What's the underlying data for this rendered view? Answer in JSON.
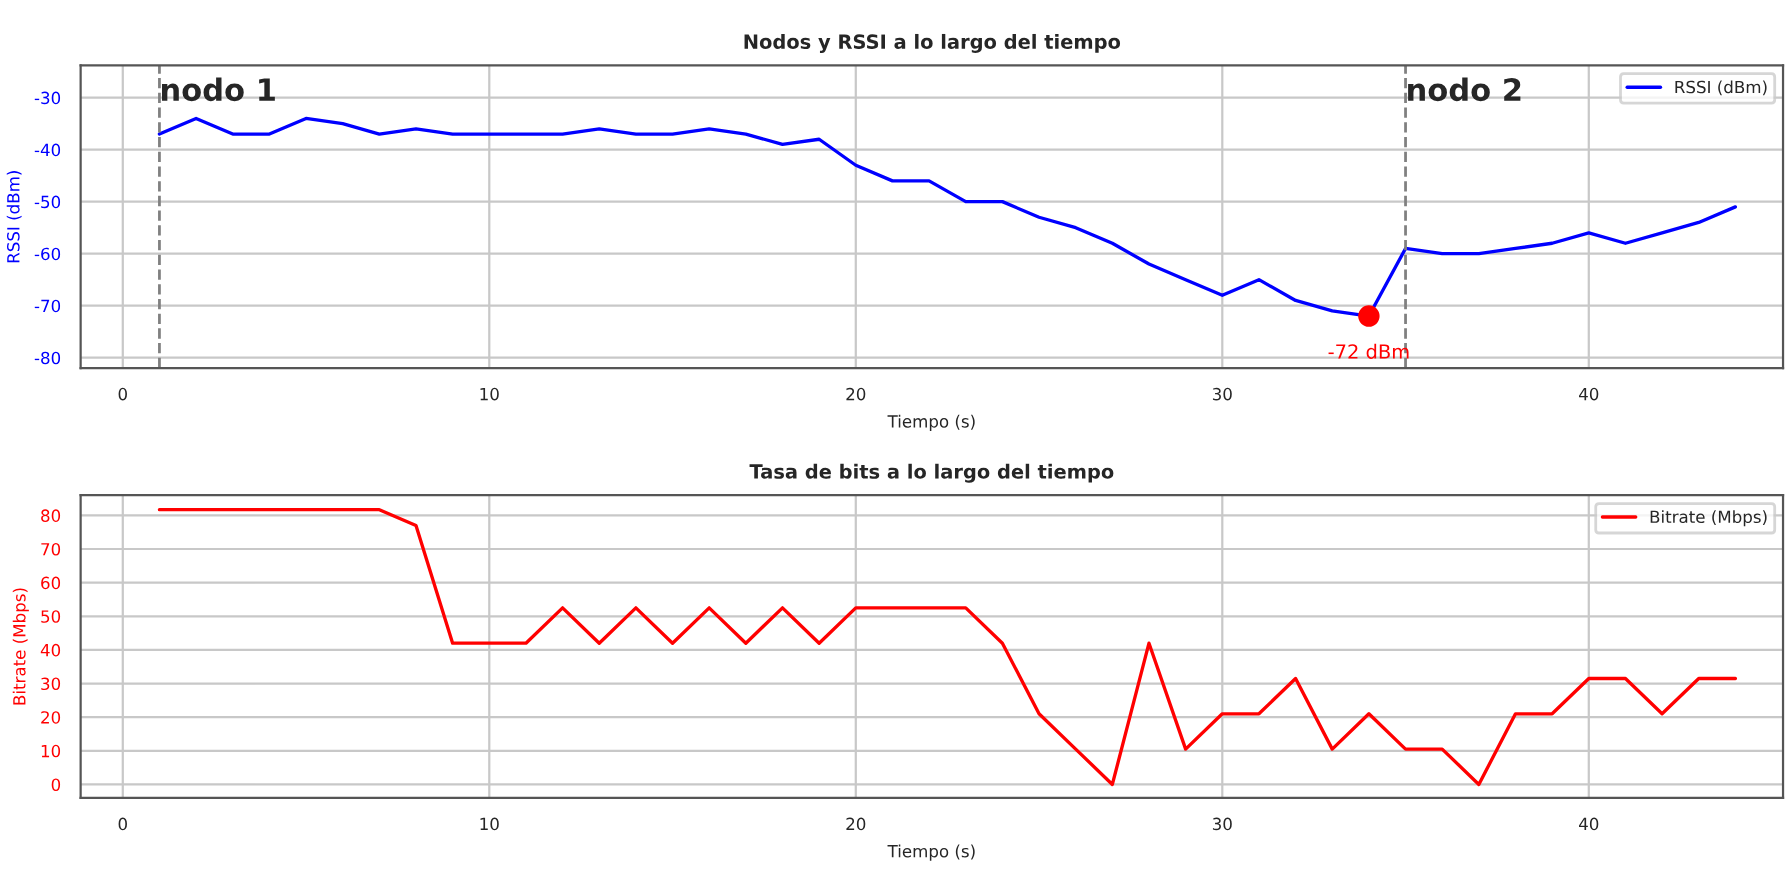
{
  "chart_data": [
    {
      "type": "line",
      "title": "Nodos y RSSI a lo largo del tiempo",
      "xlabel": "Tiempo (s)",
      "ylabel": "RSSI (dBm)",
      "x": [
        1,
        2,
        3,
        4,
        5,
        6,
        7,
        8,
        9,
        10,
        11,
        12,
        13,
        14,
        15,
        16,
        17,
        18,
        19,
        20,
        21,
        22,
        23,
        24,
        25,
        26,
        27,
        28,
        29,
        30,
        31,
        32,
        33,
        34,
        35,
        36,
        37,
        38,
        39,
        40,
        41,
        42,
        43,
        44
      ],
      "series": [
        {
          "name": "RSSI (dBm)",
          "color": "#0000ff",
          "values": [
            -37,
            -34,
            -37,
            -37,
            -34,
            -35,
            -37,
            -36,
            -37,
            -37,
            -37,
            -37,
            -36,
            -37,
            -37,
            -36,
            -37,
            -39,
            -38,
            -43,
            -46,
            -46,
            -50,
            -50,
            -53,
            -55,
            -58,
            -62,
            -65,
            -68,
            -65,
            -69,
            -71,
            -72,
            -59,
            -60,
            -60,
            -59,
            -58,
            -56,
            -58,
            -56,
            -54,
            -51
          ]
        },
        {
          "type": "scatter",
          "color": "#ff0000",
          "x": [
            34
          ],
          "values": [
            -72
          ],
          "marker": "circle"
        }
      ],
      "annotations": [
        {
          "text": "-72 dBm",
          "x": 34,
          "y": -72
        }
      ],
      "ref_lines": [
        {
          "axis": "x",
          "value": 1,
          "label": "nodo 1",
          "color": "#808080",
          "line_style": "dashed"
        },
        {
          "axis": "x",
          "value": 35,
          "label": "nodo 2",
          "color": "#808080",
          "line_style": "dashed"
        }
      ],
      "xlim": [
        -1.15,
        45.3
      ],
      "xticks": [
        0,
        10,
        20,
        30,
        40
      ],
      "ylim": [
        -82,
        -23.8
      ],
      "yticks": [
        -80,
        -70,
        -60,
        -50,
        -40,
        -30
      ],
      "grid": true,
      "legend": "top right",
      "marker": "none",
      "line_style": "solid"
    },
    {
      "type": "line",
      "title": "Tasa de bits a lo largo del tiempo",
      "xlabel": "Tiempo (s)",
      "ylabel": "Bitrate (Mbps)",
      "x": [
        1,
        2,
        3,
        4,
        5,
        6,
        7,
        8,
        9,
        10,
        11,
        12,
        13,
        14,
        15,
        16,
        17,
        18,
        19,
        20,
        21,
        22,
        23,
        24,
        25,
        26,
        27,
        28,
        29,
        30,
        31,
        32,
        33,
        34,
        35,
        36,
        37,
        38,
        39,
        40,
        41,
        42,
        43,
        44
      ],
      "series": [
        {
          "name": "Bitrate (Mbps)",
          "color": "#ff0000",
          "values": [
            81.7,
            81.7,
            81.7,
            81.7,
            81.7,
            81.7,
            81.7,
            77,
            42,
            42,
            42,
            52.5,
            42,
            52.5,
            42,
            52.5,
            42,
            52.5,
            42,
            52.5,
            52.5,
            52.5,
            52.5,
            42,
            21,
            10.5,
            0,
            42,
            10.5,
            21,
            21,
            31.5,
            10.5,
            21,
            10.5,
            10.5,
            0,
            21,
            21,
            31.5,
            31.5,
            21,
            31.5,
            31.5
          ]
        }
      ],
      "xlim": [
        -1.15,
        45.3
      ],
      "xticks": [
        0,
        10,
        20,
        30,
        40
      ],
      "ylim": [
        -4,
        86
      ],
      "yticks": [
        0,
        10,
        20,
        30,
        40,
        50,
        60,
        70,
        80
      ],
      "grid": true,
      "legend": "top right",
      "marker": "none",
      "line_style": "solid"
    }
  ]
}
